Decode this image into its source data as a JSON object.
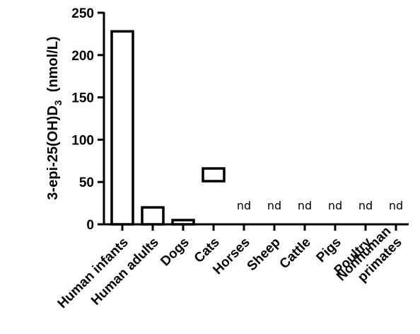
{
  "chart_data": {
    "type": "bar",
    "ylabel": "3-epi-25(OH)D",
    "ylabel_subscript": "3",
    "ylabel_units": "(nmol/L)",
    "ylim": [
      0,
      250
    ],
    "yticks": [
      0,
      50,
      100,
      150,
      200,
      250
    ],
    "grid": false,
    "categories": [
      "Human infants",
      "Human adults",
      "Dogs",
      "Cats",
      "Horses",
      "Sheep",
      "Cattle",
      "Pigs",
      "Poultry",
      "Nonhuman primates"
    ],
    "category_lines": [
      [
        "Human infants"
      ],
      [
        "Human adults"
      ],
      [
        "Dogs"
      ],
      [
        "Cats"
      ],
      [
        "Horses"
      ],
      [
        "Sheep"
      ],
      [
        "Cattle"
      ],
      [
        "Pigs"
      ],
      [
        "Poultry"
      ],
      [
        "Nonhuman",
        "primates"
      ]
    ],
    "ranges": [
      {
        "low": 0,
        "high": 228
      },
      {
        "low": 0,
        "high": 20
      },
      {
        "low": 0,
        "high": 5
      },
      {
        "low": 51,
        "high": 66
      },
      null,
      null,
      null,
      null,
      null,
      null
    ],
    "not_detected_label": "nd",
    "bar_fill": "#ffffff",
    "bar_stroke": "#000000"
  }
}
